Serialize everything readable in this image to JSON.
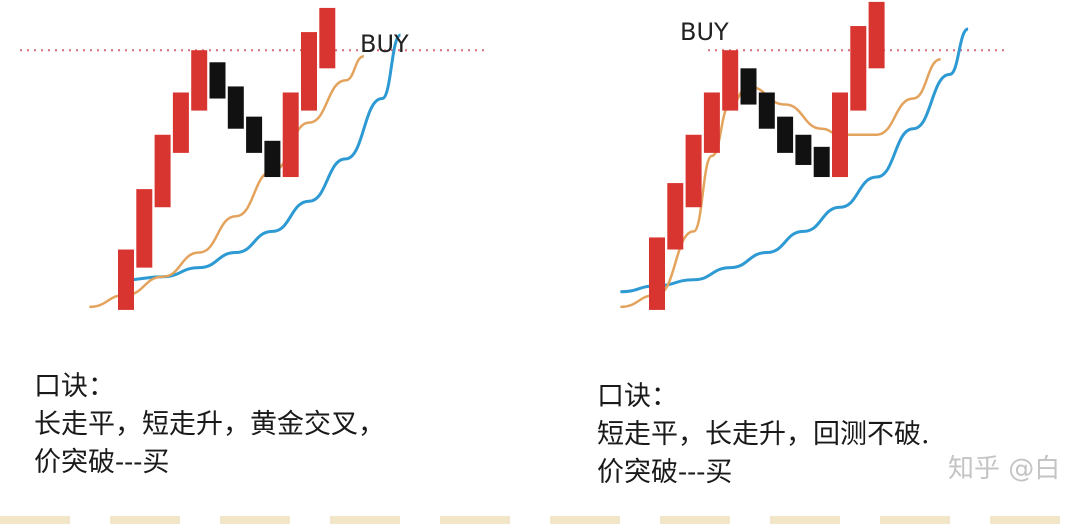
{
  "chart_data": [
    {
      "type": "candlestick",
      "title": "",
      "signal_label": "BUY",
      "long_ma": [
        [
          0,
          0.14
        ],
        [
          2,
          0.15
        ],
        [
          4,
          0.18
        ],
        [
          6,
          0.23
        ],
        [
          8,
          0.3
        ],
        [
          10,
          0.4
        ],
        [
          12,
          0.54
        ],
        [
          14,
          0.74
        ],
        [
          15,
          0.95
        ]
      ],
      "short_ma": [
        [
          -2,
          0.05
        ],
        [
          0,
          0.09
        ],
        [
          2,
          0.15
        ],
        [
          4,
          0.23
        ],
        [
          6,
          0.35
        ],
        [
          8,
          0.5
        ],
        [
          10,
          0.66
        ],
        [
          12,
          0.8
        ],
        [
          13,
          0.88
        ]
      ],
      "resistance": 0.9,
      "candles": [
        {
          "dir": "up",
          "open": 0.04,
          "close": 0.24
        },
        {
          "dir": "up",
          "open": 0.18,
          "close": 0.44
        },
        {
          "dir": "up",
          "open": 0.38,
          "close": 0.62
        },
        {
          "dir": "up",
          "open": 0.56,
          "close": 0.76
        },
        {
          "dir": "up",
          "open": 0.7,
          "close": 0.9
        },
        {
          "dir": "down",
          "open": 0.86,
          "close": 0.74
        },
        {
          "dir": "down",
          "open": 0.78,
          "close": 0.64
        },
        {
          "dir": "down",
          "open": 0.68,
          "close": 0.56
        },
        {
          "dir": "down",
          "open": 0.6,
          "close": 0.48
        },
        {
          "dir": "up",
          "open": 0.48,
          "close": 0.76
        },
        {
          "dir": "up",
          "open": 0.7,
          "close": 0.96
        },
        {
          "dir": "up",
          "open": 0.84,
          "close": 1.04
        }
      ]
    },
    {
      "type": "candlestick",
      "title": "",
      "signal_label": "BUY",
      "long_ma": [
        [
          -2,
          0.1
        ],
        [
          0,
          0.12
        ],
        [
          2,
          0.14
        ],
        [
          4,
          0.18
        ],
        [
          6,
          0.23
        ],
        [
          8,
          0.3
        ],
        [
          10,
          0.38
        ],
        [
          12,
          0.48
        ],
        [
          14,
          0.64
        ],
        [
          16,
          0.82
        ],
        [
          17,
          0.97
        ]
      ],
      "short_ma": [
        [
          -2,
          0.05
        ],
        [
          0,
          0.09
        ],
        [
          2,
          0.3
        ],
        [
          3,
          0.55
        ],
        [
          4,
          0.72
        ],
        [
          5,
          0.78
        ],
        [
          7,
          0.72
        ],
        [
          9,
          0.64
        ],
        [
          10,
          0.62
        ],
        [
          12,
          0.62
        ],
        [
          14,
          0.74
        ],
        [
          15.5,
          0.87
        ]
      ],
      "resistance": 0.9,
      "candles": [
        {
          "dir": "up",
          "open": 0.04,
          "close": 0.28
        },
        {
          "dir": "up",
          "open": 0.24,
          "close": 0.46
        },
        {
          "dir": "up",
          "open": 0.38,
          "close": 0.62
        },
        {
          "dir": "up",
          "open": 0.56,
          "close": 0.76
        },
        {
          "dir": "up",
          "open": 0.7,
          "close": 0.9
        },
        {
          "dir": "down",
          "open": 0.84,
          "close": 0.72
        },
        {
          "dir": "down",
          "open": 0.76,
          "close": 0.64
        },
        {
          "dir": "down",
          "open": 0.68,
          "close": 0.56
        },
        {
          "dir": "down",
          "open": 0.62,
          "close": 0.52
        },
        {
          "dir": "down",
          "open": 0.58,
          "close": 0.48
        },
        {
          "dir": "up",
          "open": 0.48,
          "close": 0.76
        },
        {
          "dir": "up",
          "open": 0.7,
          "close": 0.98
        },
        {
          "dir": "up",
          "open": 0.84,
          "close": 1.06
        }
      ]
    }
  ],
  "captions": {
    "left": {
      "heading": "口诀：",
      "line1": "长走平，短走升，黄金交叉，",
      "line2": "价突破---买"
    },
    "right": {
      "heading": "口诀：",
      "line1": "短走平，长走升，回测不破.",
      "line2": "价突破---买"
    }
  },
  "watermark": "知乎 @白",
  "colors": {
    "up_candle": "#d93530",
    "down_candle": "#111111",
    "long_ma": "#2d9ad3",
    "short_ma": "#e3a35c",
    "resistance": "#d96a7a",
    "label": "#222222"
  }
}
